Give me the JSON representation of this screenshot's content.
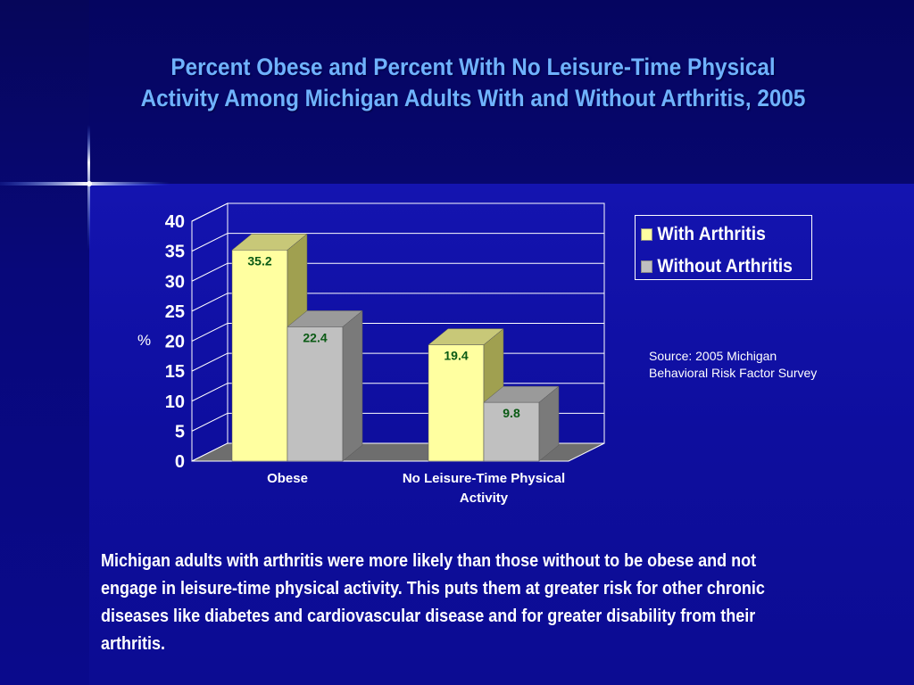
{
  "slide": {
    "title_line1": "Percent Obese and Percent With No Leisure-Time Physical",
    "title_line2": "Activity Among Michigan Adults With and Without Arthritis, 2005",
    "source": "Source: 2005 Michigan Behavioral Risk Factor Survey",
    "body": "Michigan adults with arthritis were more likely than those without to be obese and not engage in leisure-time physical activity.  This puts them at greater risk for other chronic diseases like diabetes and cardiovascular disease and for greater disability from their arthritis."
  },
  "colors": {
    "title": "#6fb2ff",
    "with_arthritis": "#ffffa0",
    "without_arthritis": "#c0c0c0",
    "data_label": "#0a5a14"
  },
  "chart_data": {
    "type": "bar",
    "style": "3d",
    "categories": [
      "Obese",
      "No Leisure-Time Physical Activity"
    ],
    "category_lines": [
      [
        "Obese"
      ],
      [
        "No Leisure-Time Physical",
        "Activity"
      ]
    ],
    "series": [
      {
        "name": "With Arthritis",
        "values": [
          35.2,
          19.4
        ],
        "color": "#ffffa0"
      },
      {
        "name": "Without Arthritis",
        "values": [
          22.4,
          9.8
        ],
        "color": "#c0c0c0"
      }
    ],
    "data_labels": [
      [
        "35.2",
        "19.4"
      ],
      [
        "22.4",
        "9.8"
      ]
    ],
    "ylabel": "%",
    "ylim": [
      0,
      40
    ],
    "yticks": [
      "0",
      "5",
      "10",
      "15",
      "20",
      "25",
      "30",
      "35",
      "40"
    ],
    "grid": true,
    "legend": "right"
  }
}
